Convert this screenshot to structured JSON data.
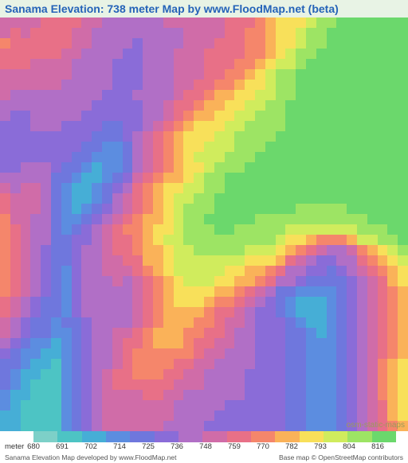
{
  "title": "Sanama Elevation: 738 meter Map by www.FloodMap.net (beta)",
  "attribution": "osm-static-maps",
  "credits": {
    "left": "Sanama Elevation Map developed by www.FloodMap.net",
    "right": "Base map © OpenStreetMap contributors"
  },
  "legend": {
    "unit": "meter",
    "ticks": [
      {
        "value": 680,
        "pos": 42
      },
      {
        "value": 691,
        "pos": 78
      },
      {
        "value": 702,
        "pos": 114
      },
      {
        "value": 714,
        "pos": 150
      },
      {
        "value": 725,
        "pos": 186
      },
      {
        "value": 736,
        "pos": 222
      },
      {
        "value": 748,
        "pos": 258
      },
      {
        "value": 759,
        "pos": 294
      },
      {
        "value": 770,
        "pos": 330
      },
      {
        "value": 782,
        "pos": 366
      },
      {
        "value": 793,
        "pos": 402
      },
      {
        "value": 804,
        "pos": 438
      },
      {
        "value": 816,
        "pos": 474
      }
    ],
    "colors": [
      "#7dd0c8",
      "#4dc4c4",
      "#46aed6",
      "#5c8de0",
      "#6f77dd",
      "#8a6cd8",
      "#b16fc6",
      "#d06ca8",
      "#e87087",
      "#f5866b",
      "#fab259",
      "#f8e05a",
      "#d0ec5d",
      "#9de464",
      "#6bd86c"
    ]
  },
  "elevation_map": {
    "type": "heatmap",
    "grid_cols": 40,
    "grid_rows": 40,
    "palette": {
      "0": "#6bd86c",
      "1": "#9de464",
      "2": "#d0ec5d",
      "3": "#f8e05a",
      "4": "#fab259",
      "5": "#f5866b",
      "6": "#e87087",
      "7": "#d06ca8",
      "8": "#b16fc6",
      "9": "#8a6cd8",
      "a": "#6f77dd",
      "b": "#5c8de0",
      "c": "#46aed6",
      "d": "#4dc4c4"
    },
    "cells": [
      "7777666677888888777777666543332110000000",
      "7676666778888888887777665543321100000000",
      "5666666778888988887776665543321100000000",
      "6666667788889988877766665543211000000000",
      "6667777888899988877766655432210000000000",
      "7777777888899988877766554321100000000000",
      "7777778888899988877665543321100000000000",
      "7888888888999888876654433221100000000000",
      "8888888889999988766544332211000000000000",
      "8998888899999988765443322111000000000000",
      "9998889999aa9987654333221111000000000000",
      "999999999aaa9876543332211110000000000000",
      "99999999aabba876543322211100000000000000",
      "9999999aabbba876543222111000000000000000",
      "998889aabcbba876543321110000000000000000",
      "88888aabccba9765443211000000000000000000",
      "78778abccba98654332211000000000000000000",
      "67778abccba87654322110000000000000000000",
      "67778abcba987654321110000000011111000000",
      "57788abba9876544321100000111111111110000",
      "56788aba98765543321110011111222222211100",
      "56788aa998766543221111111112334555422110",
      "56789aa988766544322111112223456788754321",
      "56789aa988776644322222223334678998865432",
      "56789ab9887776543222223344568899a9876543",
      "56789ab98887876543222334456889aaaa987643",
      "56789ab98888876543333445678aabbbba987654",
      "6789aab98888876543334556789abcccba987654",
      "6789aab98888876544445667899abcccba987654",
      "789aabaa98888765444556778999abccba987654",
      "789aabba98877654445566788999aabcba987654",
      "89abbcba98876654445667788999aabbba987654",
      "9abbccba98876555555677888999aabbba987654",
      "aabccdba98876555566778888999aabbba987543",
      "abccddba98766555667788889999aabbba987543",
      "abcdddba98766666677788889999aabbba987543",
      "bccdddba98777766778888889999aabbba987543",
      "bcddddba98777777788888999999aabbba987643",
      "ccddddba98777777788889999999aabbba987643",
      "ccddddba98777777888899999999aabbba987654"
    ]
  }
}
